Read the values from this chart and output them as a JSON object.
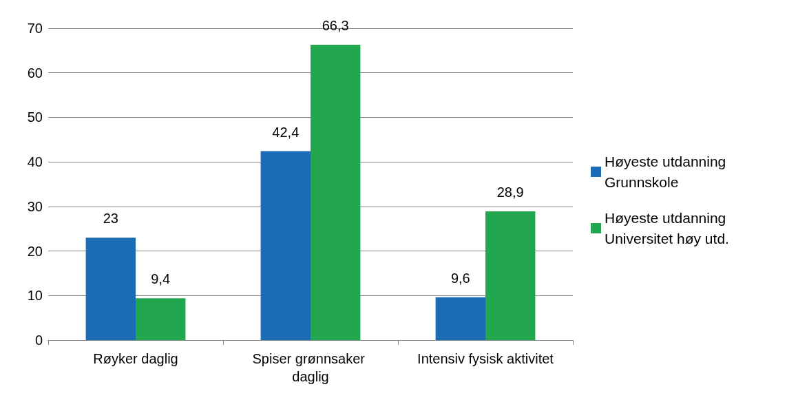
{
  "chart_data": {
    "type": "bar",
    "categories": [
      "Røyker daglig",
      "Spiser grønnsaker daglig",
      "Intensiv fysisk aktivitet"
    ],
    "series": [
      {
        "name": "Høyeste utdanning Grunnskole",
        "color": "#1a6cb4",
        "values": [
          23,
          42.4,
          9.6
        ],
        "value_labels": [
          "23",
          "42,4",
          "9,6"
        ]
      },
      {
        "name": "Høyeste utdanning Universitet høy utd.",
        "color": "#22a74f",
        "values": [
          9.4,
          66.3,
          28.9
        ],
        "value_labels": [
          "9,4",
          "66,3",
          "28,9"
        ]
      }
    ],
    "ylim": [
      0,
      70
    ],
    "yticks": [
      0,
      10,
      20,
      30,
      40,
      50,
      60,
      70
    ],
    "grid": "y",
    "legend": "right"
  }
}
